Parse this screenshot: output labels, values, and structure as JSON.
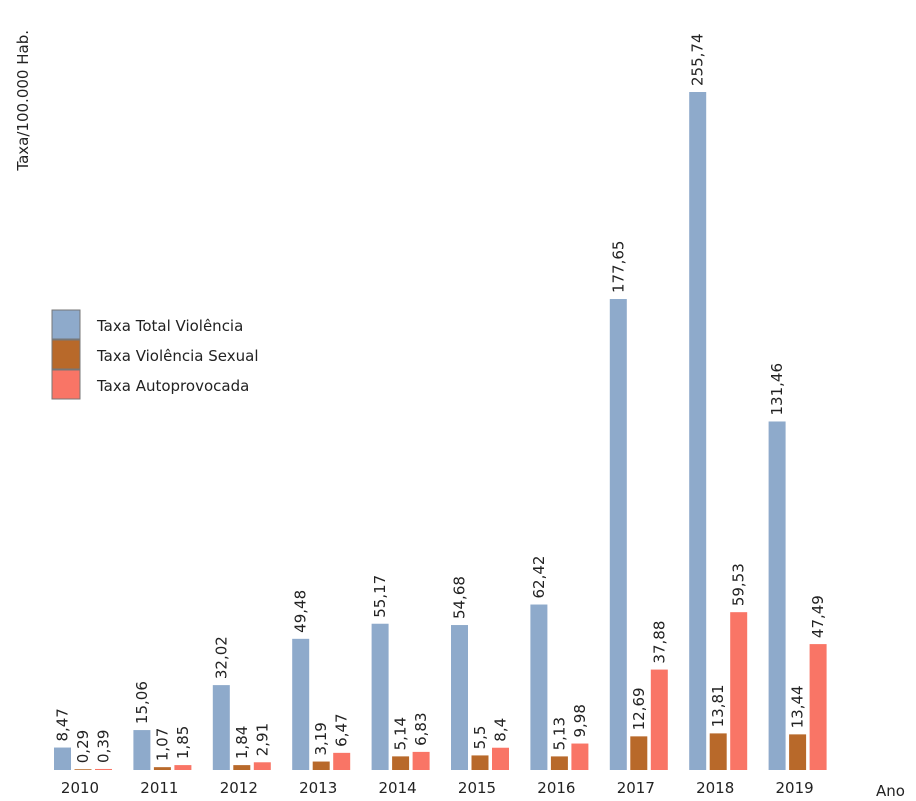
{
  "chart_data": {
    "type": "bar",
    "y_label": "Taxa/100.000 Hab.",
    "x_label": "Ano",
    "categories": [
      "2010",
      "2011",
      "2012",
      "2013",
      "2014",
      "2015",
      "2016",
      "2017",
      "2018",
      "2019"
    ],
    "series": [
      {
        "name": "Taxa Total Violência",
        "color": "#8eaacb",
        "values": [
          8.47,
          15.06,
          32.02,
          49.48,
          55.17,
          54.68,
          62.42,
          177.65,
          255.74,
          131.46
        ],
        "value_labels": [
          "8,47",
          "15,06",
          "32,02",
          "49,48",
          "55,17",
          "54,68",
          "62,42",
          "177,65",
          "255,74",
          "131,46"
        ]
      },
      {
        "name": "Taxa Violência Sexual",
        "color": "#b8692a",
        "values": [
          0.29,
          1.07,
          1.84,
          3.19,
          5.14,
          5.5,
          5.13,
          12.69,
          13.81,
          13.44
        ],
        "value_labels": [
          "0,29",
          "1,07",
          "1,84",
          "3,19",
          "5,14",
          "5,5",
          "5,13",
          "12,69",
          "13,81",
          "13,44"
        ]
      },
      {
        "name": "Taxa Autoprovocada",
        "color": "#f97566",
        "values": [
          0.39,
          1.85,
          2.91,
          6.47,
          6.83,
          8.4,
          9.98,
          37.88,
          59.53,
          47.49
        ],
        "value_labels": [
          "0,39",
          "1,85",
          "2,91",
          "6,47",
          "6,83",
          "8,4",
          "9,98",
          "37,88",
          "59,53",
          "47,49"
        ]
      }
    ]
  }
}
